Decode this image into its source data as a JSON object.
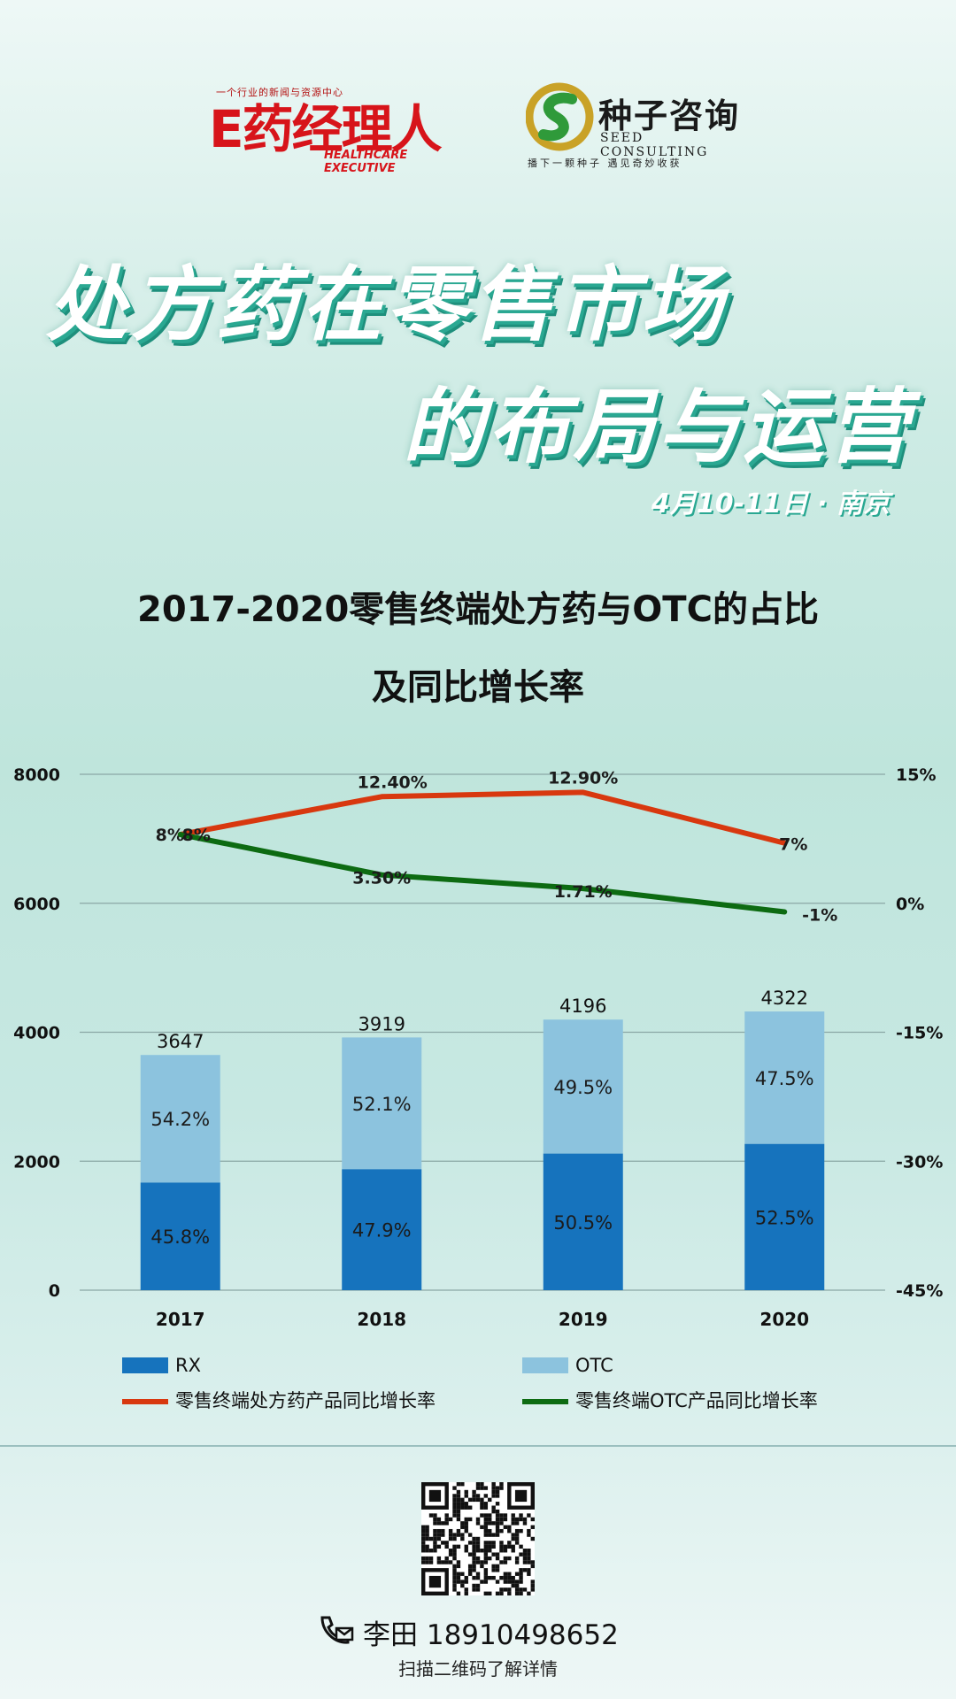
{
  "header": {
    "logo_left": {
      "tagline": "一个行业的新闻与资源中心",
      "name": "E药经理人",
      "name_en": "HEALTHCARE EXECUTIVE"
    },
    "logo_right": {
      "name": "种子咨询",
      "name_en": "SEED   CONSULTING",
      "tagline": "播下一颗种子    遇见奇妙收获"
    }
  },
  "headline": {
    "line1": "处方药在零售市场",
    "line2": "的布局与运营",
    "date": "4月10-11日 · 南京"
  },
  "chart_title": {
    "line1": "2017-2020零售终端处方药与OTC的占比",
    "line2": "及同比增长率"
  },
  "chart_data": {
    "type": "bar",
    "stacked": true,
    "categories": [
      "2017",
      "2018",
      "2019",
      "2020"
    ],
    "totals": [
      3647,
      3919,
      4196,
      4322
    ],
    "series": [
      {
        "name": "RX",
        "color": "#1673bd",
        "share_labels": [
          "45.8%",
          "47.9%",
          "50.5%",
          "52.5%"
        ],
        "share": [
          45.8,
          47.9,
          50.5,
          52.5
        ]
      },
      {
        "name": "OTC",
        "color": "#8cc3de",
        "share_labels": [
          "54.2%",
          "52.1%",
          "49.5%",
          "47.5%"
        ],
        "share": [
          54.2,
          52.1,
          49.5,
          47.5
        ]
      }
    ],
    "lines": [
      {
        "name": "零售终端处方药产品同比增长率",
        "color": "#d8380f",
        "values": [
          8,
          12.4,
          12.9,
          7
        ],
        "labels": [
          "8%",
          "12.40%",
          "12.90%",
          "7%"
        ]
      },
      {
        "name": "零售终端OTC产品同比增长率",
        "color": "#0d6b12",
        "values": [
          8,
          3.3,
          1.71,
          -1
        ],
        "labels": [
          "8%",
          "3.30%",
          "1.71%",
          "-1%"
        ]
      }
    ],
    "y_left": {
      "min": 0,
      "max": 8000,
      "ticks": [
        "0",
        "2000",
        "4000",
        "6000",
        "8000"
      ]
    },
    "y_right": {
      "min": -45,
      "max": 15,
      "ticks": [
        "-45%",
        "-30%",
        "-15%",
        "0%",
        "15%"
      ]
    },
    "grid": true,
    "legend_position": "bottom"
  },
  "contact": {
    "name_phone": "李田 18910498652",
    "scan_text": "扫描二维码了解详情"
  }
}
